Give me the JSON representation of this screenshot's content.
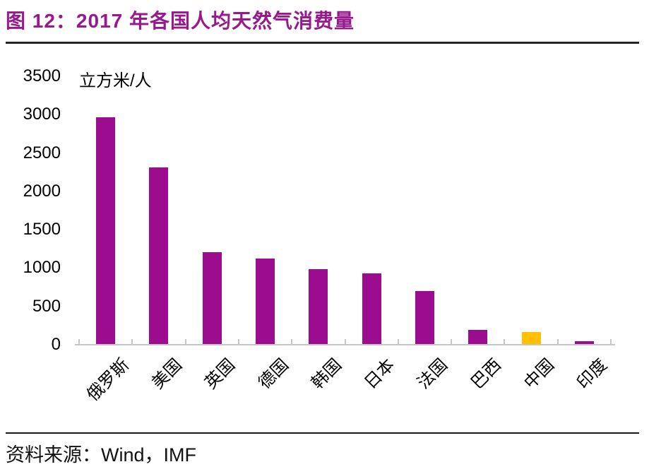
{
  "title": "图 12：2017 年各国人均天然气消费量",
  "source": "资料来源：Wind，IMF",
  "colors": {
    "title": "#98188E",
    "bar": "#9B0D8E",
    "highlight_bar": "#FFC000",
    "axis": "#C6C6C6",
    "title_rule": "#262626",
    "source_rule": "#1A1A1A",
    "text": "#000000"
  },
  "chart_data": {
    "type": "bar",
    "title": "2017 年各国人均天然气消费量",
    "unit_label": "立方米/人",
    "categories": [
      "俄罗斯",
      "美国",
      "英国",
      "德国",
      "韩国",
      "日本",
      "法国",
      "巴西",
      "中国",
      "印度"
    ],
    "values": [
      2960,
      2300,
      1200,
      1110,
      975,
      925,
      690,
      185,
      160,
      35
    ],
    "highlight_index": 8,
    "highlight_category": "中国",
    "ylabel": "立方米/人",
    "ylim": [
      0,
      3500
    ],
    "yticks": [
      0,
      500,
      1000,
      1500,
      2000,
      2500,
      3000,
      3500
    ],
    "grid": false,
    "legend": null
  }
}
